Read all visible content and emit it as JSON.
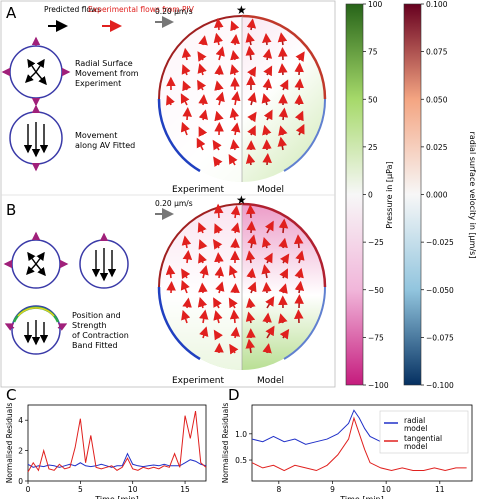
{
  "panel_letters": {
    "a": "A",
    "b": "B",
    "c": "C",
    "d": "D"
  },
  "legend_a": {
    "predicted": "Predicted flows",
    "experimental": "Experimental flows from PIV",
    "scale": "0.20 μm/s"
  },
  "legend_b": {
    "scale": "0.20 μm/s"
  },
  "icons_a": [
    {
      "label_lines": [
        "Radial Surface",
        "Movement from",
        "Experiment"
      ]
    },
    {
      "label_lines": [
        "Movement",
        "along AV Fitted"
      ]
    }
  ],
  "icons_b": [
    {
      "label_lines": [
        "Position and",
        "Strength",
        "of Contraction",
        "Band Fitted"
      ]
    }
  ],
  "disc_labels": {
    "experiment": "Experiment",
    "model": "Model",
    "star": "★"
  },
  "colorbar_pressure": {
    "label": "Pressure in [μPa]",
    "ticks": [
      "100",
      "75",
      "50",
      "25",
      "0",
      "−25",
      "−50",
      "−75",
      "−100"
    ],
    "colors": [
      "#276419",
      "#f7f7f7",
      "#c51b7d"
    ]
  },
  "colorbar_velocity": {
    "label": "radial surface velocity in [μm/s]",
    "ticks": [
      "0.100",
      "0.075",
      "0.050",
      "0.025",
      "0.000",
      "−0.025",
      "−0.050",
      "−0.075",
      "−0.100"
    ],
    "colors": [
      "#67001f",
      "#f7f7f7",
      "#053061"
    ]
  },
  "chart_data": [
    {
      "type": "line",
      "panel": "C",
      "xlabel": "Time [min]",
      "ylabel": "Normalised Residuals",
      "xlim": [
        0,
        17
      ],
      "ylim": [
        0,
        5
      ],
      "xticks": [
        "0",
        "5",
        "10",
        "15"
      ],
      "yticks": [
        "0",
        "2",
        "4"
      ],
      "series": [
        {
          "color": "#2030c8",
          "x": [
            0,
            0.5,
            1,
            1.5,
            2,
            2.5,
            3,
            3.5,
            4,
            4.5,
            5,
            5.5,
            6,
            6.5,
            7,
            7.5,
            8,
            8.5,
            9,
            9.5,
            10,
            10.5,
            11,
            11.5,
            12,
            12.5,
            13,
            13.5,
            14,
            14.5,
            15,
            15.5,
            16,
            16.5,
            17
          ],
          "values": [
            1.1,
            0.9,
            1.0,
            0.95,
            1.05,
            1.0,
            0.9,
            1.0,
            1.1,
            1.0,
            1.2,
            1.0,
            0.95,
            1.0,
            1.1,
            1.0,
            0.9,
            1.0,
            1.0,
            1.8,
            1.1,
            1.0,
            0.95,
            1.0,
            1.05,
            1.0,
            1.1,
            1.0,
            1.0,
            1.0,
            1.2,
            1.4,
            1.3,
            1.1,
            1.0
          ]
        },
        {
          "color": "#e0201e",
          "x": [
            0,
            0.5,
            1,
            1.5,
            2,
            2.5,
            3,
            3.5,
            4,
            4.5,
            5,
            5.5,
            6,
            6.5,
            7,
            7.5,
            8,
            8.5,
            9,
            9.5,
            10,
            10.5,
            11,
            11.5,
            12,
            12.5,
            13,
            13.5,
            14,
            14.5,
            15,
            15.5,
            16,
            16.5,
            17
          ],
          "values": [
            0.6,
            1.2,
            0.7,
            2.0,
            0.8,
            0.7,
            1.1,
            0.8,
            0.9,
            2.2,
            4.1,
            1.2,
            3.0,
            0.9,
            0.8,
            0.9,
            1.0,
            0.7,
            0.9,
            1.5,
            0.8,
            0.7,
            0.9,
            0.8,
            0.9,
            0.8,
            1.0,
            0.9,
            1.8,
            0.9,
            4.3,
            2.8,
            4.6,
            1.2,
            0.9
          ]
        }
      ]
    },
    {
      "type": "line",
      "panel": "D",
      "xlabel": "Time [min]",
      "ylabel": "Normalised Residuals",
      "xlim": [
        7.5,
        11.6
      ],
      "ylim": [
        0.1,
        1.55
      ],
      "xticks": [
        "8",
        "9",
        "10",
        "11"
      ],
      "yticks": [
        "0.5",
        "1.0"
      ],
      "series": [
        {
          "name": "radial model",
          "color": "#2030c8",
          "x": [
            7.5,
            7.7,
            7.9,
            8.1,
            8.3,
            8.5,
            8.7,
            8.9,
            9.1,
            9.3,
            9.4,
            9.5,
            9.6,
            9.7,
            9.9,
            10.1,
            10.3,
            10.5,
            10.7,
            10.9,
            11.1,
            11.3,
            11.5
          ],
          "values": [
            0.9,
            0.85,
            0.95,
            0.85,
            0.9,
            0.8,
            0.85,
            0.9,
            1.0,
            1.2,
            1.45,
            1.3,
            1.1,
            0.95,
            0.85,
            0.8,
            0.75,
            0.8,
            0.7,
            0.75,
            0.8,
            0.75,
            0.8
          ]
        },
        {
          "name": "tangential model",
          "color": "#e0201e",
          "x": [
            7.5,
            7.7,
            7.9,
            8.1,
            8.3,
            8.5,
            8.7,
            8.9,
            9.1,
            9.3,
            9.4,
            9.5,
            9.6,
            9.7,
            9.9,
            10.1,
            10.3,
            10.5,
            10.7,
            10.9,
            11.1,
            11.3,
            11.5
          ],
          "values": [
            0.45,
            0.35,
            0.4,
            0.3,
            0.4,
            0.35,
            0.3,
            0.4,
            0.6,
            0.9,
            1.3,
            1.0,
            0.7,
            0.45,
            0.35,
            0.3,
            0.35,
            0.3,
            0.3,
            0.35,
            0.3,
            0.35,
            0.35
          ]
        }
      ]
    }
  ]
}
